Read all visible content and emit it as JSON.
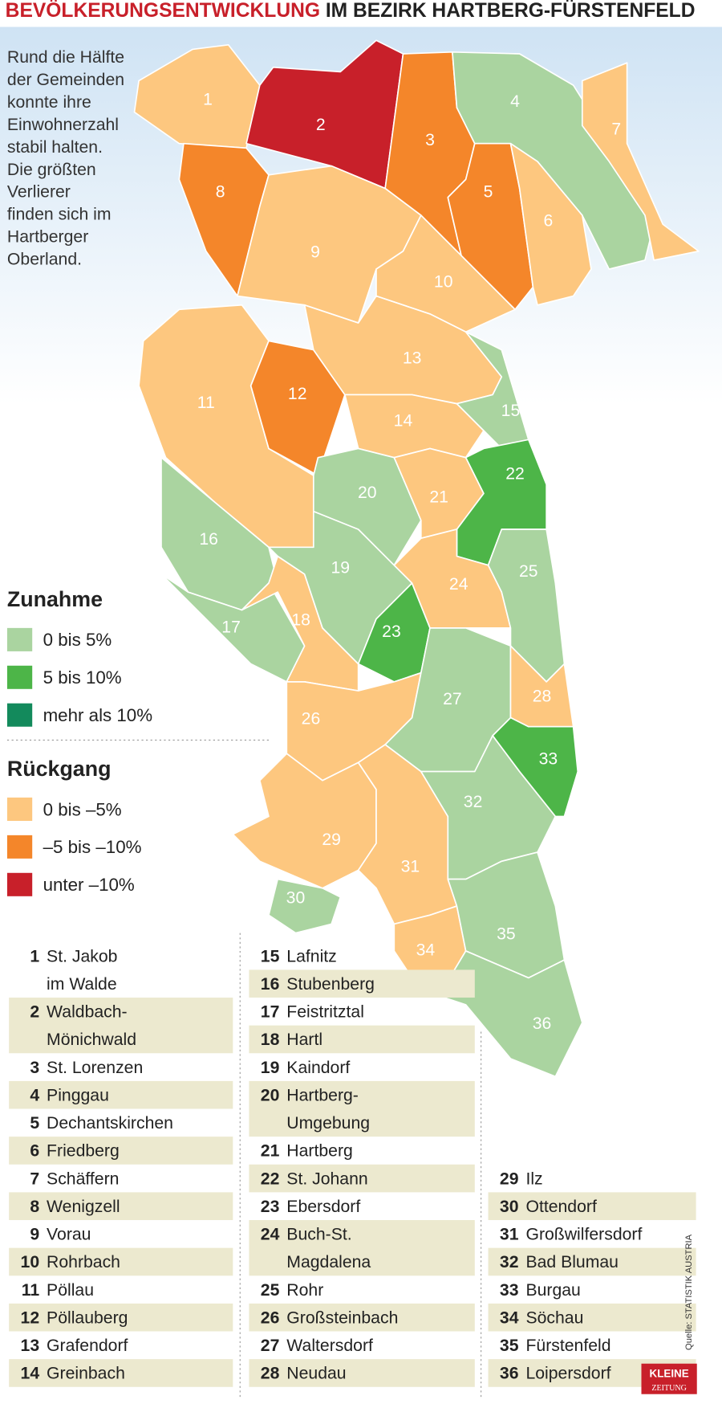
{
  "title": {
    "highlight": "BEVÖLKERUNGSENTWICKLUNG",
    "rest": " IM BEZIRK HARTBERG-FÜRSTENFELD"
  },
  "intro": [
    "Rund die Hälfte",
    "der Gemeinden",
    "konnte ihre",
    "Einwohnerzahl",
    "stabil halten.",
    "Die größten",
    "Verlierer",
    "finden sich im",
    "Hartberger",
    "Oberland."
  ],
  "legend": {
    "increase": {
      "heading": "Zunahme",
      "items": [
        {
          "label": "0 bis 5%",
          "color": "#aad4a0"
        },
        {
          "label": "5 bis 10%",
          "color": "#4db548"
        },
        {
          "label": "mehr als 10%",
          "color": "#138a5c"
        }
      ]
    },
    "decrease": {
      "heading": "Rückgang",
      "items": [
        {
          "label": "0 bis –5%",
          "color": "#fdc77f"
        },
        {
          "label": "–5 bis –10%",
          "color": "#f4862a"
        },
        {
          "label": "unter –10%",
          "color": "#c8202a"
        }
      ]
    }
  },
  "municipalities": [
    {
      "number": 1,
      "name": [
        "St. Jakob",
        "im Walde"
      ],
      "color": "#fdc77f"
    },
    {
      "number": 2,
      "name": [
        "Waldbach-",
        "Mönichwald"
      ],
      "color": "#c8202a"
    },
    {
      "number": 3,
      "name": [
        "St. Lorenzen"
      ],
      "color": "#f4862a"
    },
    {
      "number": 4,
      "name": [
        "Pinggau"
      ],
      "color": "#aad4a0"
    },
    {
      "number": 5,
      "name": [
        "Dechantskirchen"
      ],
      "color": "#f4862a"
    },
    {
      "number": 6,
      "name": [
        "Friedberg"
      ],
      "color": "#fdc77f"
    },
    {
      "number": 7,
      "name": [
        "Schäffern"
      ],
      "color": "#fdc77f"
    },
    {
      "number": 8,
      "name": [
        "Wenigzell"
      ],
      "color": "#f4862a"
    },
    {
      "number": 9,
      "name": [
        "Vorau"
      ],
      "color": "#fdc77f"
    },
    {
      "number": 10,
      "name": [
        "Rohrbach"
      ],
      "color": "#fdc77f"
    },
    {
      "number": 11,
      "name": [
        "Pöllau"
      ],
      "color": "#fdc77f"
    },
    {
      "number": 12,
      "name": [
        "Pöllauberg"
      ],
      "color": "#f4862a"
    },
    {
      "number": 13,
      "name": [
        "Grafendorf"
      ],
      "color": "#fdc77f"
    },
    {
      "number": 14,
      "name": [
        "Greinbach"
      ],
      "color": "#fdc77f"
    },
    {
      "number": 15,
      "name": [
        "Lafnitz"
      ],
      "color": "#aad4a0"
    },
    {
      "number": 16,
      "name": [
        "Stubenberg"
      ],
      "color": "#aad4a0"
    },
    {
      "number": 17,
      "name": [
        "Feistritztal"
      ],
      "color": "#aad4a0"
    },
    {
      "number": 18,
      "name": [
        "Hartl"
      ],
      "color": "#fdc77f"
    },
    {
      "number": 19,
      "name": [
        "Kaindorf"
      ],
      "color": "#aad4a0"
    },
    {
      "number": 20,
      "name": [
        "Hartberg-",
        "Umgebung"
      ],
      "color": "#aad4a0"
    },
    {
      "number": 21,
      "name": [
        "Hartberg"
      ],
      "color": "#fdc77f"
    },
    {
      "number": 22,
      "name": [
        "St. Johann"
      ],
      "color": "#4db548"
    },
    {
      "number": 23,
      "name": [
        "Ebersdorf"
      ],
      "color": "#4db548"
    },
    {
      "number": 24,
      "name": [
        "Buch-St.",
        "Magdalena"
      ],
      "color": "#fdc77f"
    },
    {
      "number": 25,
      "name": [
        "Rohr"
      ],
      "color": "#aad4a0"
    },
    {
      "number": 26,
      "name": [
        "Großsteinbach"
      ],
      "color": "#fdc77f"
    },
    {
      "number": 27,
      "name": [
        "Waltersdorf"
      ],
      "color": "#aad4a0"
    },
    {
      "number": 28,
      "name": [
        "Neudau"
      ],
      "color": "#fdc77f"
    },
    {
      "number": 29,
      "name": [
        "Ilz"
      ],
      "color": "#fdc77f"
    },
    {
      "number": 30,
      "name": [
        "Ottendorf"
      ],
      "color": "#aad4a0"
    },
    {
      "number": 31,
      "name": [
        "Großwilfersdorf"
      ],
      "color": "#fdc77f"
    },
    {
      "number": 32,
      "name": [
        "Bad Blumau"
      ],
      "color": "#aad4a0"
    },
    {
      "number": 33,
      "name": [
        "Burgau"
      ],
      "color": "#4db548"
    },
    {
      "number": 34,
      "name": [
        "Söchau"
      ],
      "color": "#fdc77f"
    },
    {
      "number": 35,
      "name": [
        "Fürstenfeld"
      ],
      "color": "#aad4a0"
    },
    {
      "number": 36,
      "name": [
        "Loipersdorf"
      ],
      "color": "#aad4a0"
    }
  ],
  "source": "Quelle: STATISTIK AUSTRIA",
  "logo": [
    "KLEINE",
    "ZEITUNG"
  ]
}
